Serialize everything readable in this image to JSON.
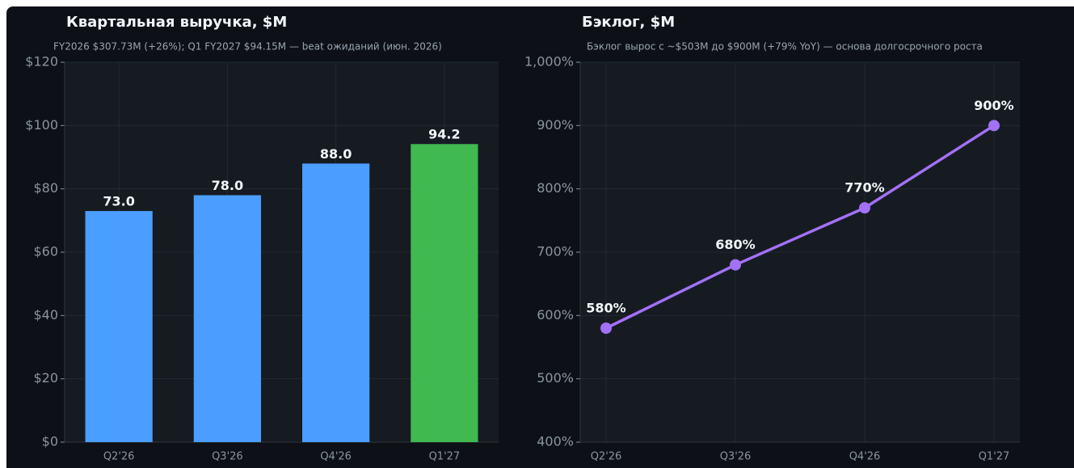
{
  "chart_data": [
    {
      "type": "bar",
      "title": "Квартальная выручка, $M",
      "subtitle": "FY2026 $307.73M (+26%); Q1 FY2027 $94.15M — beat ожиданий (июн. 2026)",
      "categories": [
        "Q2'26",
        "Q3'26",
        "Q4'26",
        "Q1'27"
      ],
      "values": [
        73.0,
        78.0,
        88.0,
        94.15
      ],
      "value_labels": [
        "73.0",
        "78.0",
        "88.0",
        "94.2"
      ],
      "colors": [
        "#4a9eff",
        "#4a9eff",
        "#4a9eff",
        "#3fb950"
      ],
      "ylim": [
        0,
        120
      ],
      "yticks": [
        {
          "value": 0,
          "label": "$0"
        },
        {
          "value": 20,
          "label": "$20"
        },
        {
          "value": 40,
          "label": "$40"
        },
        {
          "value": 60,
          "label": "$60"
        },
        {
          "value": 80,
          "label": "$80"
        },
        {
          "value": 100,
          "label": "$100"
        },
        {
          "value": 120,
          "label": "$120"
        }
      ],
      "grid": true
    },
    {
      "type": "line",
      "title": "Бэклог, $M",
      "subtitle": "Бэклог вырос с ~$503M до $900M (+79% YoY) — основа долгосрочного роста",
      "categories": [
        "Q2'26",
        "Q3'26",
        "Q4'26",
        "Q1'27"
      ],
      "values": [
        580,
        680,
        770,
        900
      ],
      "value_labels": [
        "580%",
        "680%",
        "770%",
        "900%"
      ],
      "color": "#a371f7",
      "ylim": [
        400,
        1000
      ],
      "yticks": [
        {
          "value": 400,
          "label": "400%"
        },
        {
          "value": 500,
          "label": "500%"
        },
        {
          "value": 600,
          "label": "600%"
        },
        {
          "value": 700,
          "label": "700%"
        },
        {
          "value": 800,
          "label": "800%"
        },
        {
          "value": 900,
          "label": "900%"
        },
        {
          "value": 1000,
          "label": "1,000%"
        }
      ],
      "grid": true
    }
  ]
}
